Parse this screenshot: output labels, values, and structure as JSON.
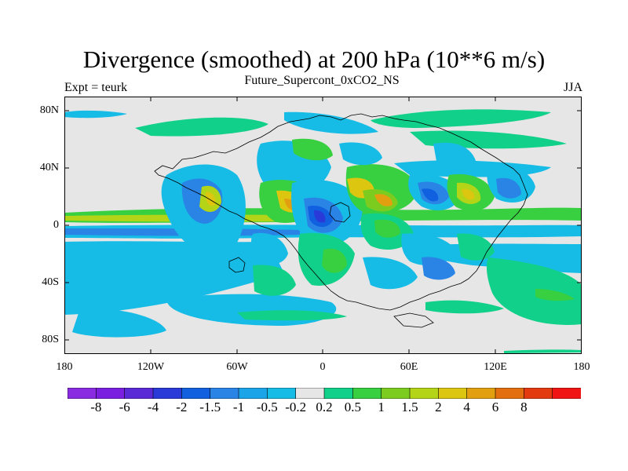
{
  "title": "Divergence (smoothed) at 200 hPa (10**6 m/s)",
  "subtitle": "Future_Supercont_0xCO2_NS",
  "left_label": "Expt = teurk",
  "right_label": "JJA",
  "map": {
    "background_color": "#e6e6e6",
    "lon_range": [
      -180,
      180
    ],
    "lat_range": [
      -90,
      90
    ],
    "y_ticks": [
      "80N",
      "40N",
      "0",
      "40S",
      "80S"
    ],
    "x_ticks": [
      "180",
      "120W",
      "60W",
      "0",
      "60E",
      "120E",
      "180"
    ]
  },
  "colorbar": {
    "colors": [
      "#8a2be2",
      "#7a1ee0",
      "#5a2ad6",
      "#2a3ad8",
      "#1060e0",
      "#2a84e6",
      "#1ca4e8",
      "#16bce6",
      "#e6e6e6",
      "#10d08a",
      "#38d040",
      "#7ccc20",
      "#b4d418",
      "#dcc610",
      "#e2a010",
      "#e26e10",
      "#e43a10",
      "#f01414"
    ],
    "labels": [
      "-8",
      "-6",
      "-4",
      "-2",
      "-1.5",
      "-1",
      "-0.5",
      "-0.2",
      "0.2",
      "0.5",
      "1",
      "1.5",
      "2",
      "4",
      "6",
      "8"
    ]
  }
}
